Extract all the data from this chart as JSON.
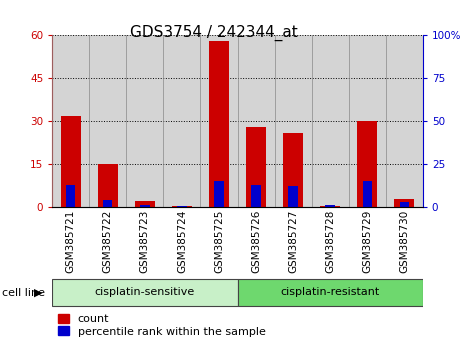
{
  "title": "GDS3754 / 242344_at",
  "samples": [
    "GSM385721",
    "GSM385722",
    "GSM385723",
    "GSM385724",
    "GSM385725",
    "GSM385726",
    "GSM385727",
    "GSM385728",
    "GSM385729",
    "GSM385730"
  ],
  "count_values": [
    32,
    15,
    2,
    0.3,
    58,
    28,
    26,
    0.5,
    30,
    3
  ],
  "percentile_values": [
    13,
    4,
    1,
    0.5,
    15,
    13,
    12,
    1,
    15,
    3
  ],
  "count_color": "#cc0000",
  "percentile_color": "#0000cc",
  "ylim_left": [
    0,
    60
  ],
  "ylim_right": [
    0,
    100
  ],
  "yticks_left": [
    0,
    15,
    30,
    45,
    60
  ],
  "yticks_right": [
    0,
    25,
    50,
    75,
    100
  ],
  "ytick_labels_left": [
    "0",
    "15",
    "30",
    "45",
    "60"
  ],
  "ytick_labels_right": [
    "0",
    "25",
    "50",
    "75",
    "100%"
  ],
  "groups": [
    {
      "label": "cisplatin-sensitive",
      "start": 0,
      "end": 5,
      "color": "#c8f0c8"
    },
    {
      "label": "cisplatin-resistant",
      "start": 5,
      "end": 10,
      "color": "#6ed86e"
    }
  ],
  "cell_line_label": "cell line",
  "legend_count": "count",
  "legend_percentile": "percentile rank within the sample",
  "bar_width": 0.55,
  "blue_bar_width": 0.25,
  "sample_bg_color": "#d4d4d4",
  "plot_bg_color": "#ffffff",
  "title_fontsize": 11,
  "tick_fontsize": 7.5,
  "label_fontsize": 9
}
